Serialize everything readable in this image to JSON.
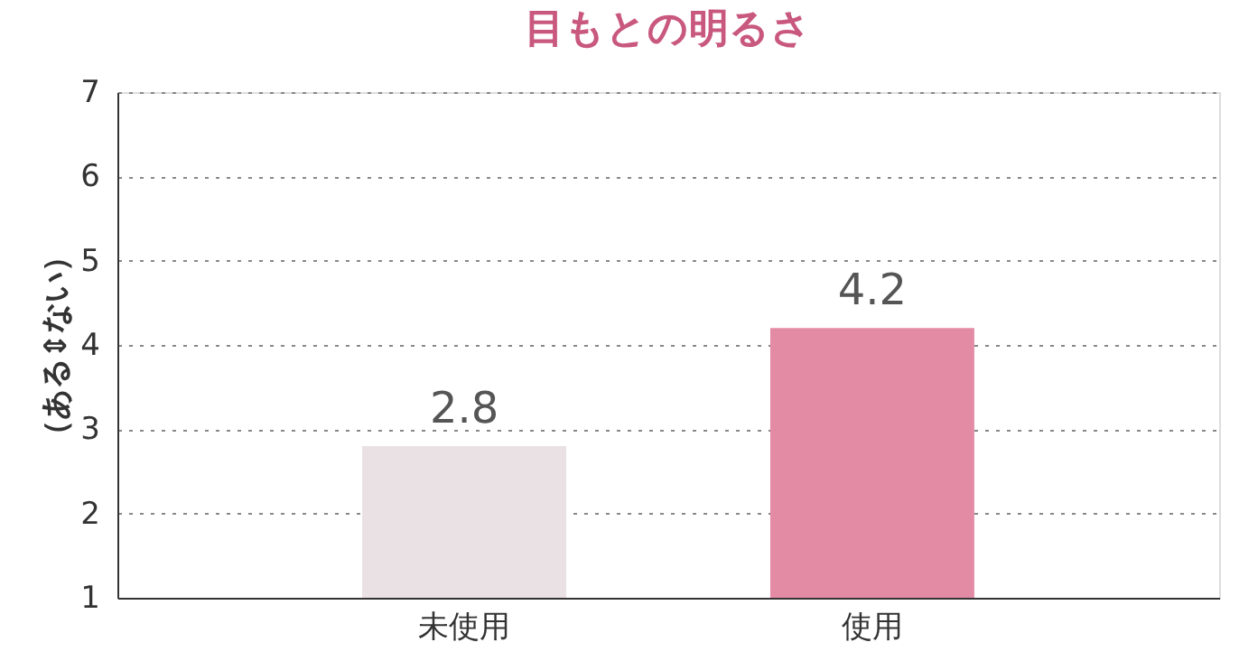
{
  "chart_data": {
    "type": "bar",
    "title": "目もとの明るさ",
    "ylabel": "（ある⇕ない）",
    "categories": [
      "未使用",
      "使用"
    ],
    "values": [
      2.8,
      4.2
    ],
    "colors": [
      "#e9e1e4",
      "#e38aa5"
    ],
    "ylim": [
      1,
      7
    ],
    "yticks": [
      1,
      2,
      3,
      4,
      5,
      6,
      7
    ],
    "grid": "y",
    "data_labels": true
  }
}
